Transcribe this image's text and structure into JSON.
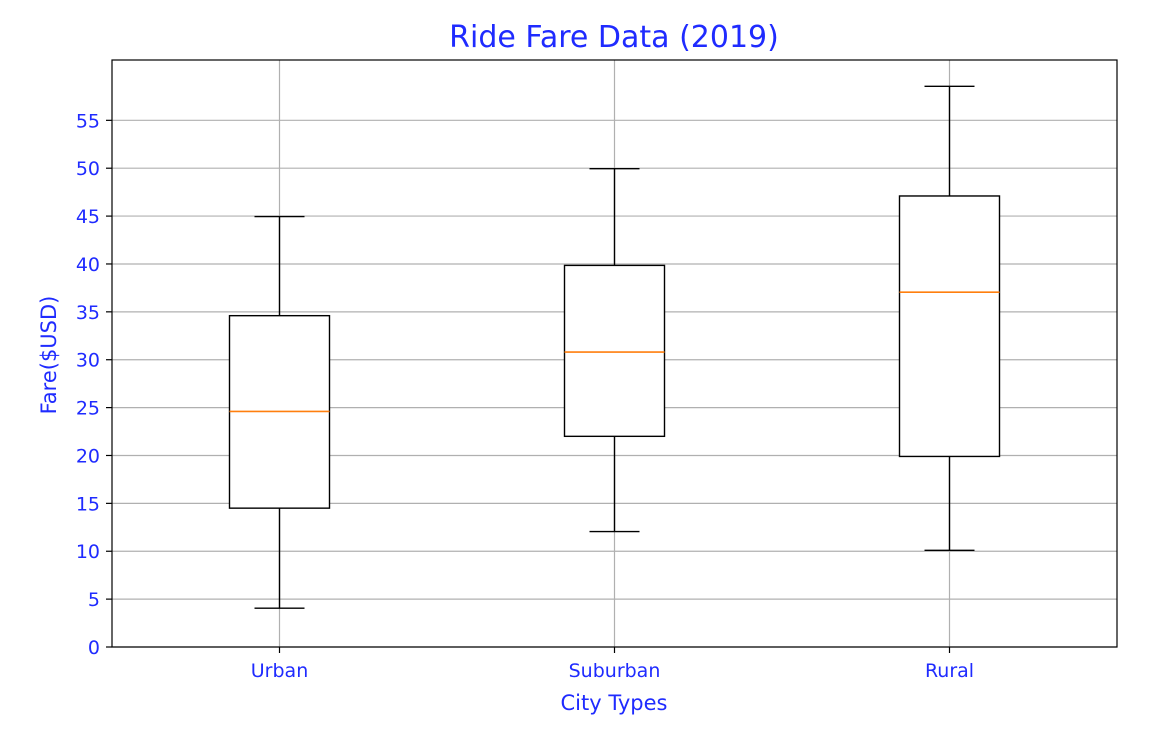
{
  "chart_data": {
    "type": "box",
    "title": "Ride Fare Data (2019)",
    "xlabel": "City Types",
    "ylabel": "Fare($USD)",
    "ylim": [
      0,
      61.3
    ],
    "yticks": [
      0,
      5,
      10,
      15,
      20,
      25,
      30,
      35,
      40,
      45,
      50,
      55
    ],
    "grid": true,
    "categories": [
      "Urban",
      "Suburban",
      "Rural"
    ],
    "boxes": [
      {
        "whisker_low": 4.05,
        "q1": 14.5,
        "median": 24.6,
        "q3": 34.6,
        "whisker_high": 44.95
      },
      {
        "whisker_low": 12.05,
        "q1": 22.0,
        "median": 30.8,
        "q3": 39.85,
        "whisker_high": 49.95
      },
      {
        "whisker_low": 10.1,
        "q1": 19.9,
        "median": 37.05,
        "q3": 47.1,
        "whisker_high": 58.55
      }
    ],
    "colors": {
      "text": "#1f2bff",
      "box": "#000000",
      "median": "#ff7f0e",
      "grid": "#b0b0b0"
    }
  }
}
